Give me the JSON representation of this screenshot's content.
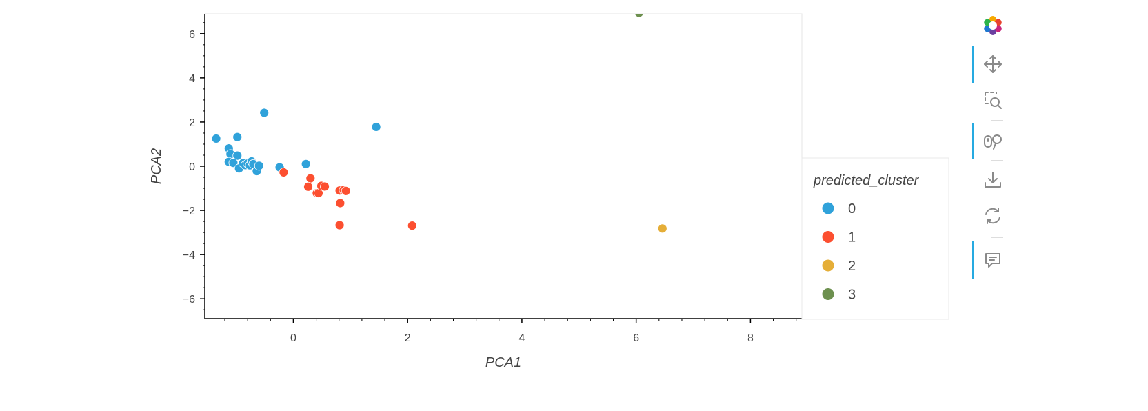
{
  "chart_data": {
    "type": "scatter",
    "title": "",
    "xlabel": "PCA1",
    "ylabel": "PCA2",
    "xlim": [
      -1.55,
      8.9
    ],
    "ylim": [
      -6.9,
      6.9
    ],
    "xticks": [
      0,
      2,
      4,
      6,
      8
    ],
    "xtick_labels": [
      "0",
      "2",
      "4",
      "6",
      "8"
    ],
    "yticks": [
      -6,
      -4,
      -2,
      0,
      2,
      4,
      6
    ],
    "ytick_labels": [
      "−6",
      "−4",
      "−2",
      "0",
      "2",
      "4",
      "6"
    ],
    "legend_title": "predicted_cluster",
    "legend_placement": "right",
    "series": [
      {
        "name": "0",
        "color": "#30a2da",
        "points": [
          [
            -1.35,
            1.25
          ],
          [
            -0.51,
            2.42
          ],
          [
            -0.98,
            1.32
          ],
          [
            -1.13,
            0.81
          ],
          [
            -1.1,
            0.55
          ],
          [
            -0.98,
            0.48
          ],
          [
            -1.13,
            0.2
          ],
          [
            -1.05,
            0.15
          ],
          [
            -0.95,
            -0.1
          ],
          [
            -0.88,
            0.14
          ],
          [
            -0.84,
            0.05
          ],
          [
            -0.8,
            0.12
          ],
          [
            -0.76,
            0.04
          ],
          [
            -0.73,
            0.22
          ],
          [
            -0.7,
            0.1
          ],
          [
            -0.64,
            -0.22
          ],
          [
            -0.6,
            0.02
          ],
          [
            -0.24,
            -0.05
          ],
          [
            0.22,
            0.1
          ],
          [
            1.45,
            1.78
          ]
        ]
      },
      {
        "name": "1",
        "color": "#fc4f30",
        "points": [
          [
            -0.17,
            -0.28
          ],
          [
            0.3,
            -0.55
          ],
          [
            0.26,
            -0.93
          ],
          [
            0.41,
            -1.22
          ],
          [
            0.44,
            -1.22
          ],
          [
            0.49,
            -0.89
          ],
          [
            0.55,
            -0.92
          ],
          [
            0.81,
            -1.1
          ],
          [
            0.88,
            -1.08
          ],
          [
            0.92,
            -1.12
          ],
          [
            0.82,
            -1.67
          ],
          [
            0.81,
            -2.67
          ],
          [
            2.08,
            -2.69
          ]
        ]
      },
      {
        "name": "2",
        "color": "#e5ae38",
        "points": [
          [
            6.46,
            -2.82
          ]
        ]
      },
      {
        "name": "3",
        "color": "#6d904f",
        "points": [
          [
            6.05,
            6.95
          ]
        ]
      }
    ]
  },
  "toolbar": {
    "tools": [
      {
        "icon": "bokeh-logo-icon",
        "active": false
      },
      {
        "icon": "pan-icon",
        "active": true
      },
      {
        "icon": "box-zoom-icon",
        "active": false
      },
      {
        "icon": "wheel-zoom-icon",
        "active": true
      },
      {
        "icon": "save-icon",
        "active": false
      },
      {
        "icon": "reset-icon",
        "active": false
      },
      {
        "icon": "hover-icon",
        "active": true
      }
    ]
  }
}
